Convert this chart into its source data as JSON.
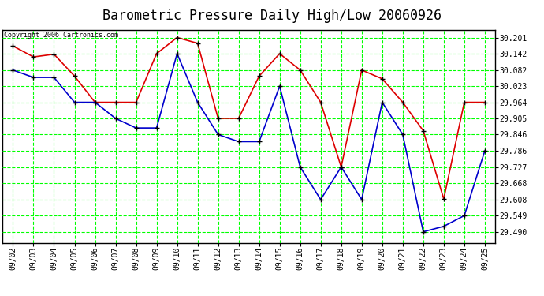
{
  "title": "Barometric Pressure Daily High/Low 20060926",
  "copyright": "Copyright 2006 Cartronics.com",
  "background_color": "#ffffff",
  "plot_bg_color": "#ffffff",
  "grid_color": "#00ff00",
  "dates": [
    "09/02",
    "09/03",
    "09/04",
    "09/05",
    "09/06",
    "09/07",
    "09/08",
    "09/09",
    "09/10",
    "09/11",
    "09/12",
    "09/13",
    "09/14",
    "09/15",
    "09/16",
    "09/17",
    "09/18",
    "09/19",
    "09/20",
    "09/21",
    "09/22",
    "09/23",
    "09/24",
    "09/25"
  ],
  "high_values": [
    30.17,
    30.13,
    30.14,
    30.06,
    29.964,
    29.964,
    29.964,
    30.142,
    30.201,
    30.18,
    29.905,
    29.905,
    30.06,
    30.142,
    30.082,
    29.964,
    29.727,
    30.082,
    30.05,
    29.964,
    29.86,
    29.61,
    29.964,
    29.964
  ],
  "low_values": [
    30.082,
    30.055,
    30.055,
    29.964,
    29.964,
    29.905,
    29.87,
    29.87,
    30.142,
    29.964,
    29.846,
    29.82,
    29.82,
    30.023,
    29.727,
    29.608,
    29.727,
    29.608,
    29.964,
    29.846,
    29.49,
    29.51,
    29.549,
    29.786
  ],
  "high_color": "#dd0000",
  "low_color": "#0000cc",
  "markersize": 5,
  "linewidth": 1.2,
  "yticks": [
    29.49,
    29.549,
    29.608,
    29.668,
    29.727,
    29.786,
    29.846,
    29.905,
    29.964,
    30.023,
    30.082,
    30.142,
    30.201
  ],
  "ylim": [
    29.45,
    30.23
  ],
  "title_fontsize": 12
}
